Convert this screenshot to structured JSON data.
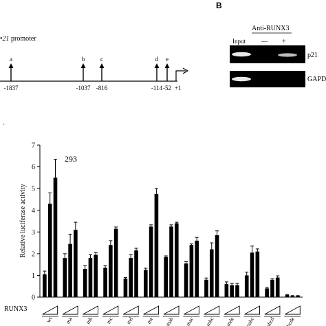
{
  "panel_b": {
    "letter": "B",
    "antibody_label": "Anti-RUNX3",
    "lane_labels": [
      "Input",
      "—",
      "+"
    ],
    "rows": [
      "p21",
      "GAPD"
    ]
  },
  "promoter": {
    "title_prefix": "•",
    "title_italic": "21",
    "title_rest": " promoter",
    "sites": [
      {
        "letter": "a",
        "position": "-1837"
      },
      {
        "letter": "b",
        "position": "-1037"
      },
      {
        "letter": "c",
        "position": "-816"
      },
      {
        "letter": "d",
        "position": "-114"
      },
      {
        "letter": "e",
        "position": "-52"
      }
    ],
    "tss_label": "+1",
    "stray_mark": "·"
  },
  "chart_data": {
    "type": "bar",
    "title": "",
    "ylabel": "Relative luciferase activity",
    "ylim": [
      0,
      7
    ],
    "yticks": [
      "0",
      "1",
      "2",
      "3",
      "4",
      "5",
      "6",
      "7"
    ],
    "annotation": "293",
    "runx3_label": "RUNX3",
    "groups": [
      "wt",
      "ma",
      "mb",
      "mc",
      "md",
      "me",
      "mab",
      "mac",
      "mbc",
      "mde",
      "mabc",
      "mabcd",
      "mabcde"
    ],
    "values": [
      [
        1.05,
        4.3,
        5.5
      ],
      [
        1.8,
        2.45,
        3.1
      ],
      [
        1.3,
        1.8,
        1.95
      ],
      [
        1.35,
        2.4,
        3.15
      ],
      [
        0.85,
        1.8,
        2.15
      ],
      [
        1.25,
        3.25,
        4.75
      ],
      [
        1.85,
        3.25,
        3.4
      ],
      [
        1.55,
        2.4,
        2.6
      ],
      [
        0.8,
        2.2,
        2.85
      ],
      [
        0.6,
        0.55,
        0.55
      ],
      [
        1.0,
        2.05,
        2.1
      ],
      [
        0.4,
        0.8,
        0.9
      ],
      [
        0.1,
        0.05,
        0.05
      ]
    ],
    "errors": [
      [
        0.15,
        0.5,
        0.85
      ],
      [
        0.2,
        0.45,
        0.35
      ],
      [
        0.15,
        0.15,
        0.1
      ],
      [
        0.1,
        0.2,
        0.08
      ],
      [
        0.05,
        0.15,
        0.1
      ],
      [
        0.08,
        0.08,
        0.25
      ],
      [
        0.05,
        0.08,
        0.05
      ],
      [
        0.08,
        0.05,
        0.15
      ],
      [
        0.08,
        0.3,
        0.2
      ],
      [
        0.1,
        0.08,
        0.08
      ],
      [
        0.15,
        0.3,
        0.12
      ],
      [
        0.05,
        0.05,
        0.08
      ],
      [
        0.02,
        0.02,
        0.02
      ]
    ],
    "bar_color": "#000000"
  }
}
